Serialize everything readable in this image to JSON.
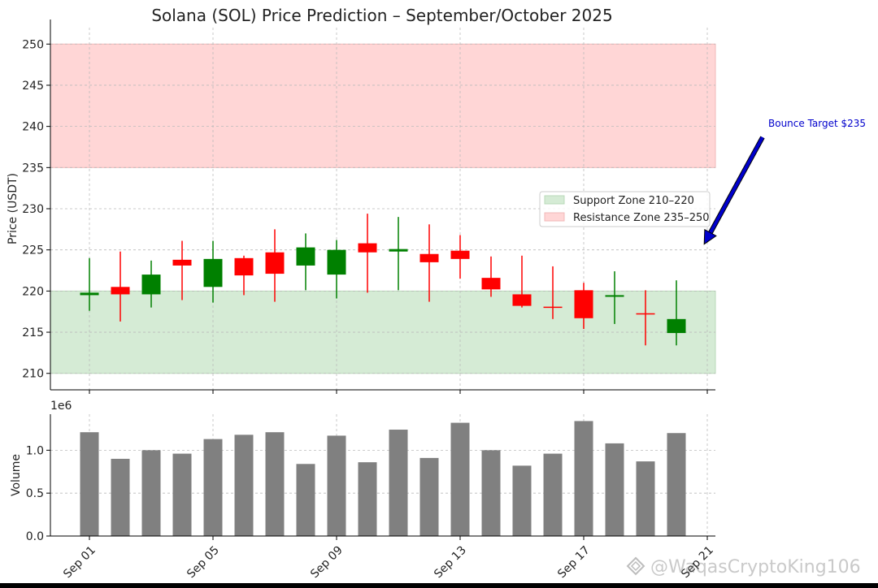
{
  "chart_data": {
    "type": "candlestick",
    "title": "Solana (SOL) Price Prediction – September/October 2025",
    "price_panel": {
      "ylabel": "Price (USDT)",
      "ylim": [
        208,
        252
      ],
      "yticks": [
        210,
        215,
        220,
        225,
        230,
        235,
        240,
        245,
        250
      ],
      "grid": true,
      "zones": [
        {
          "name": "Support Zone 210–220",
          "low": 210,
          "high": 220,
          "color": "#d5ebd5",
          "edge": "#b9d9b9"
        },
        {
          "name": "Resistance Zone 235–250",
          "low": 235,
          "high": 250,
          "color": "#ffd6d6",
          "edge": "#f2b8b8"
        }
      ],
      "legend_placement": "right",
      "annotation": {
        "text": "Bounce Target $235",
        "color": "#0000cc",
        "points_to": {
          "date_index": 19.9,
          "price": 225.7
        }
      }
    },
    "candles": [
      {
        "date": "2025-09-01",
        "open": 219.5,
        "high": 224.0,
        "low": 217.6,
        "close": 219.8
      },
      {
        "date": "2025-09-02",
        "open": 220.5,
        "high": 224.8,
        "low": 216.3,
        "close": 219.6
      },
      {
        "date": "2025-09-03",
        "open": 219.6,
        "high": 223.7,
        "low": 218.0,
        "close": 222.0
      },
      {
        "date": "2025-09-04",
        "open": 223.8,
        "high": 226.1,
        "low": 218.9,
        "close": 223.1
      },
      {
        "date": "2025-09-05",
        "open": 220.5,
        "high": 226.1,
        "low": 218.6,
        "close": 223.9
      },
      {
        "date": "2025-09-06",
        "open": 224.0,
        "high": 224.3,
        "low": 219.5,
        "close": 221.9
      },
      {
        "date": "2025-09-07",
        "open": 224.7,
        "high": 227.5,
        "low": 218.7,
        "close": 222.1
      },
      {
        "date": "2025-09-08",
        "open": 223.1,
        "high": 227.0,
        "low": 220.1,
        "close": 225.3
      },
      {
        "date": "2025-09-09",
        "open": 222.0,
        "high": 226.2,
        "low": 219.1,
        "close": 225.0
      },
      {
        "date": "2025-09-10",
        "open": 225.8,
        "high": 229.4,
        "low": 219.8,
        "close": 224.7
      },
      {
        "date": "2025-09-11",
        "open": 224.8,
        "high": 229.0,
        "low": 220.1,
        "close": 225.1
      },
      {
        "date": "2025-09-12",
        "open": 224.5,
        "high": 228.1,
        "low": 218.7,
        "close": 223.5
      },
      {
        "date": "2025-09-13",
        "open": 224.9,
        "high": 226.8,
        "low": 221.5,
        "close": 223.9
      },
      {
        "date": "2025-09-14",
        "open": 221.6,
        "high": 224.2,
        "low": 219.3,
        "close": 220.2
      },
      {
        "date": "2025-09-15",
        "open": 219.6,
        "high": 224.3,
        "low": 218.0,
        "close": 218.2
      },
      {
        "date": "2025-09-16",
        "open": 218.1,
        "high": 223.0,
        "low": 216.6,
        "close": 218.0
      },
      {
        "date": "2025-09-17",
        "open": 220.1,
        "high": 221.0,
        "low": 215.4,
        "close": 216.7
      },
      {
        "date": "2025-09-18",
        "open": 219.3,
        "high": 222.4,
        "low": 216.0,
        "close": 219.5
      },
      {
        "date": "2025-09-19",
        "open": 217.3,
        "high": 220.1,
        "low": 213.4,
        "close": 217.2
      },
      {
        "date": "2025-09-20",
        "open": 214.9,
        "high": 221.3,
        "low": 213.4,
        "close": 216.6
      }
    ],
    "volume_panel": {
      "ylabel": "Volume",
      "offset_label": "1e6",
      "ylim": [
        0,
        1.42
      ],
      "yticks": [
        0.0,
        0.5,
        1.0
      ],
      "ytick_labels": [
        "0.0",
        "0.5",
        "1.0"
      ],
      "bar_color": "#808080"
    },
    "volumes": [
      1.21,
      0.9,
      1.0,
      0.96,
      1.13,
      1.18,
      1.21,
      0.84,
      1.17,
      0.86,
      1.24,
      0.91,
      1.32,
      1.0,
      0.82,
      0.96,
      1.34,
      1.08,
      0.87,
      1.2
    ],
    "xticks": [
      {
        "label": "Sep 01",
        "index": 0
      },
      {
        "label": "Sep 05",
        "index": 4
      },
      {
        "label": "Sep 09",
        "index": 8
      },
      {
        "label": "Sep 13",
        "index": 12
      },
      {
        "label": "Sep 17",
        "index": 16
      },
      {
        "label": "Sep 21",
        "index": 20
      }
    ],
    "up_color": "#008000",
    "down_color": "#ff0000"
  },
  "watermark": {
    "text": "@WaqasCryptoKing106"
  }
}
